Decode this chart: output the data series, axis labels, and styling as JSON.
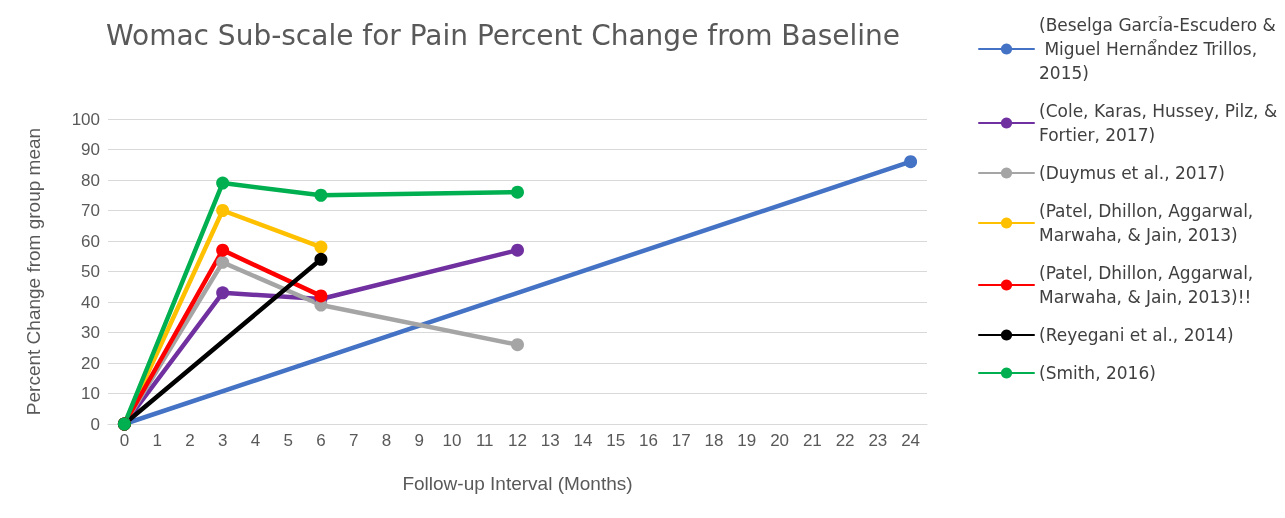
{
  "chart_data": {
    "type": "line",
    "title": "Womac Sub-scale for Pain Percent Change from Baseline",
    "xlabel": "Follow-up Interval (Months)",
    "ylabel": "Percent Change from group mean",
    "xlim": [
      -0.5,
      24.5
    ],
    "xticks": [
      0,
      1,
      2,
      3,
      4,
      5,
      6,
      7,
      8,
      9,
      10,
      11,
      12,
      13,
      14,
      15,
      16,
      17,
      18,
      19,
      20,
      21,
      22,
      23,
      24
    ],
    "ylim": [
      0,
      100
    ],
    "yticks": [
      0,
      10,
      20,
      30,
      40,
      50,
      60,
      70,
      80,
      90,
      100
    ],
    "grid": "y",
    "legend": "right",
    "marker": "circle",
    "line_style": "solid",
    "series": [
      {
        "name": "(Beselga Garcỉa-Escudero & Miguel Hernẩndez Trillos, 2015)",
        "color": "#4472c4",
        "x": [
          0,
          24
        ],
        "values": [
          0,
          86
        ]
      },
      {
        "name": "(Cole, Karas, Hussey, Pilz, & Fortier, 2017)",
        "color": "#7030a0",
        "x": [
          0,
          3,
          6,
          12
        ],
        "values": [
          0,
          43,
          41,
          57
        ]
      },
      {
        "name": "(Duymus et al., 2017)",
        "color": "#a5a5a5",
        "x": [
          0,
          3,
          6,
          12
        ],
        "values": [
          0,
          53,
          39,
          26
        ]
      },
      {
        "name": "(Patel, Dhillon, Aggarwal, Marwaha, & Jain, 2013)",
        "color": "#ffc000",
        "x": [
          0,
          3,
          6
        ],
        "values": [
          0,
          70,
          58
        ]
      },
      {
        "name": "(Patel, Dhillon, Aggarwal, Marwaha, & Jain, 2013)!!",
        "color": "#ff0000",
        "x": [
          0,
          3,
          6
        ],
        "values": [
          0,
          57,
          42
        ]
      },
      {
        "name": "(Reyegani et al., 2014)",
        "color": "#000000",
        "x": [
          0,
          6
        ],
        "values": [
          0,
          54
        ]
      },
      {
        "name": "(Smith, 2016)",
        "color": "#00b050",
        "x": [
          0,
          3,
          6,
          12
        ],
        "values": [
          0,
          79,
          75,
          76
        ]
      }
    ]
  }
}
